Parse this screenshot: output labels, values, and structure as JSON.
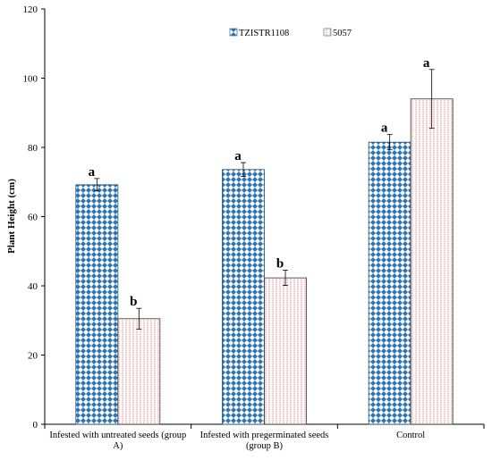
{
  "chart_data": {
    "type": "bar",
    "title": "",
    "xlabel": "",
    "ylabel": "Plant Height (cm)",
    "ylim": [
      0,
      120
    ],
    "yticks": [
      0,
      20,
      40,
      60,
      80,
      100,
      120
    ],
    "grid": false,
    "legend_position": "top-center",
    "categories": [
      [
        "Infested with untreated seeds (group",
        "A)"
      ],
      [
        "Infested with pregerminated seeds",
        "(group B)"
      ],
      [
        "Control"
      ]
    ],
    "series": [
      {
        "name": "TZISTR1108",
        "pattern": "blue-diamond-check",
        "color": "#2E75B6",
        "values": [
          69.2,
          73.6,
          81.5
        ],
        "errors": [
          1.8,
          2.0,
          2.2
        ],
        "labels": [
          "a",
          "a",
          "a"
        ]
      },
      {
        "name": "5057",
        "pattern": "red-dotted-vertical",
        "color": "#E06666",
        "values": [
          30.5,
          42.3,
          94.0
        ],
        "errors": [
          3.0,
          2.2,
          8.5
        ],
        "labels": [
          "b",
          "b",
          "a"
        ]
      }
    ]
  }
}
